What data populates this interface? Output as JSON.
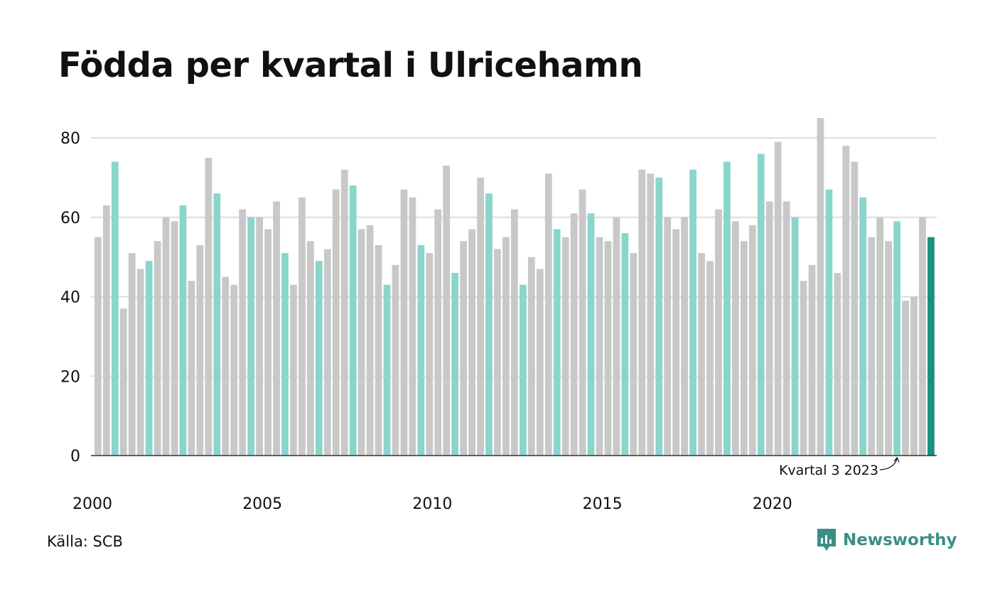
{
  "title": "Födda per kvartal i Ulricehamn",
  "source": "Källa: SCB",
  "brand": {
    "name": "Newsworthy",
    "icon": "bar-chart-speech-bubble-icon",
    "color": "#3a8f86"
  },
  "colors": {
    "default": "#c8c8c8",
    "q3": "#8ad5cc",
    "latest": "#1a9080",
    "grid": "#dddddd",
    "axis": "#333333"
  },
  "chart_data": {
    "type": "bar",
    "title": "Födda per kvartal i Ulricehamn",
    "xlabel": "",
    "ylabel": "",
    "ylim": [
      0,
      85
    ],
    "yticks": [
      0,
      20,
      40,
      60,
      80
    ],
    "xtick_labels": [
      "2000",
      "2005",
      "2010",
      "2015",
      "2020"
    ],
    "start": "2000 Q1",
    "end": "2024 Q3",
    "highlight": "quarter 3 of each year",
    "grid": true,
    "annotation": {
      "text": "Kvartal 3 2023",
      "target": "2023 Q3"
    },
    "values": [
      55,
      63,
      74,
      37,
      51,
      47,
      49,
      54,
      60,
      59,
      63,
      44,
      53,
      75,
      66,
      45,
      43,
      62,
      60,
      60,
      57,
      64,
      51,
      43,
      65,
      54,
      49,
      52,
      67,
      72,
      68,
      57,
      58,
      53,
      43,
      48,
      67,
      65,
      53,
      51,
      62,
      73,
      46,
      54,
      57,
      70,
      66,
      52,
      55,
      62,
      43,
      50,
      47,
      71,
      57,
      55,
      61,
      67,
      61,
      55,
      54,
      60,
      56,
      51,
      72,
      71,
      70,
      60,
      57,
      60,
      72,
      51,
      49,
      62,
      74,
      59,
      54,
      58,
      76,
      64,
      79,
      64,
      60,
      44,
      48,
      85,
      67,
      46,
      78,
      74,
      65,
      55,
      60,
      54,
      59,
      39,
      40,
      60,
      55
    ]
  }
}
